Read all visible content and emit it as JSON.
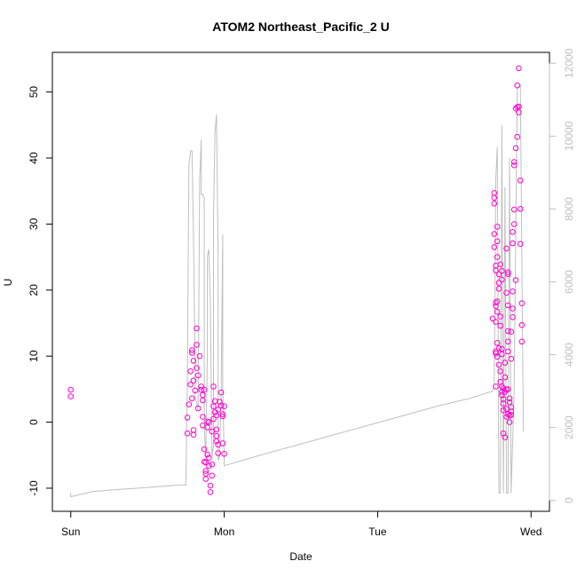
{
  "chart_data": {
    "type": "scatter",
    "title": "ATOM2 Northeast_Pacific_2 U",
    "xlabel": "Date",
    "ylabel": "U",
    "x_ticks": [
      "Sun",
      "Mon",
      "Tue",
      "Wed"
    ],
    "xlim_days": [
      -0.12,
      3.12
    ],
    "y_ticks": [
      -10,
      0,
      10,
      20,
      30,
      40,
      50
    ],
    "ylim": [
      -13.5,
      56
    ],
    "y2_ticks": [
      0,
      2000,
      4000,
      6000,
      8000,
      10000,
      12000
    ],
    "y2lim": [
      -300,
      12300
    ],
    "grid": false,
    "colors": {
      "points": "#ff00cc",
      "secondary_line": "#bfbfbf",
      "axis": "#000000",
      "right_axis": "#bfbfbf"
    },
    "series": [
      {
        "type": "scatter",
        "axis": "left",
        "points": [
          [
            0.0,
            4.9
          ],
          [
            0.0,
            3.9
          ],
          [
            0.76,
            -1.7
          ],
          [
            0.76,
            0.7
          ],
          [
            0.77,
            2.7
          ],
          [
            0.78,
            5.7
          ],
          [
            0.78,
            7.7
          ],
          [
            0.79,
            10.9
          ],
          [
            0.79,
            10.5
          ],
          [
            0.79,
            3.6
          ],
          [
            0.8,
            9.3
          ],
          [
            0.8,
            6.3
          ],
          [
            0.8,
            -1.2
          ],
          [
            0.8,
            -1.9
          ],
          [
            0.81,
            4.8
          ],
          [
            0.82,
            8.2
          ],
          [
            0.82,
            11.7
          ],
          [
            0.82,
            14.2
          ],
          [
            0.83,
            7.1
          ],
          [
            0.83,
            2.1
          ],
          [
            0.84,
            10.0
          ],
          [
            0.85,
            5.4
          ],
          [
            0.85,
            4.9
          ],
          [
            0.86,
            4.1
          ],
          [
            0.86,
            3.3
          ],
          [
            0.86,
            0.8
          ],
          [
            0.86,
            -0.5
          ],
          [
            0.87,
            4.9
          ],
          [
            0.87,
            -4.1
          ],
          [
            0.87,
            -6.0
          ],
          [
            0.88,
            -7.4
          ],
          [
            0.88,
            -7.8
          ],
          [
            0.88,
            -8.6
          ],
          [
            0.88,
            -6.1
          ],
          [
            0.89,
            -0.8
          ],
          [
            0.89,
            0.1
          ],
          [
            0.89,
            -4.9
          ],
          [
            0.9,
            -6.6
          ],
          [
            0.9,
            -5.4
          ],
          [
            0.9,
            0.0
          ],
          [
            0.91,
            -9.6
          ],
          [
            0.91,
            -10.6
          ],
          [
            0.92,
            -8.1
          ],
          [
            0.92,
            -6.4
          ],
          [
            0.92,
            -1.4
          ],
          [
            0.93,
            5.4
          ],
          [
            0.93,
            2.4
          ],
          [
            0.93,
            0.5
          ],
          [
            0.94,
            3.2
          ],
          [
            0.94,
            1.5
          ],
          [
            0.95,
            1.0
          ],
          [
            0.95,
            -1.1
          ],
          [
            0.95,
            -2.1
          ],
          [
            0.95,
            -2.9
          ],
          [
            0.96,
            -4.7
          ],
          [
            0.96,
            -3.4
          ],
          [
            0.96,
            1.9
          ],
          [
            0.97,
            3.1
          ],
          [
            0.98,
            4.5
          ],
          [
            0.98,
            2.5
          ],
          [
            0.99,
            1.2
          ],
          [
            0.99,
            0.9
          ],
          [
            0.99,
            -3.2
          ],
          [
            1.0,
            -4.8
          ],
          [
            1.0,
            2.4
          ],
          [
            2.75,
            15.7
          ],
          [
            2.76,
            34.7
          ],
          [
            2.76,
            34.0
          ],
          [
            2.76,
            33.1
          ],
          [
            2.76,
            28.5
          ],
          [
            2.76,
            26.5
          ],
          [
            2.77,
            23.7
          ],
          [
            2.77,
            23.0
          ],
          [
            2.77,
            18.1
          ],
          [
            2.77,
            17.6
          ],
          [
            2.77,
            15.2
          ],
          [
            2.77,
            10.7
          ],
          [
            2.77,
            10.4
          ],
          [
            2.77,
            5.4
          ],
          [
            2.78,
            29.6
          ],
          [
            2.78,
            27.4
          ],
          [
            2.78,
            25.0
          ],
          [
            2.78,
            18.3
          ],
          [
            2.78,
            16.7
          ],
          [
            2.78,
            12.0
          ],
          [
            2.78,
            9.9
          ],
          [
            2.79,
            22.4
          ],
          [
            2.79,
            21.1
          ],
          [
            2.79,
            20.2
          ],
          [
            2.79,
            11.2
          ],
          [
            2.79,
            8.7
          ],
          [
            2.8,
            23.9
          ],
          [
            2.8,
            16.0
          ],
          [
            2.8,
            14.6
          ],
          [
            2.8,
            7.7
          ],
          [
            2.8,
            6.1
          ],
          [
            2.81,
            22.9
          ],
          [
            2.81,
            21.6
          ],
          [
            2.81,
            11.1
          ],
          [
            2.81,
            10.3
          ],
          [
            2.81,
            5.4
          ],
          [
            2.81,
            4.6
          ],
          [
            2.81,
            4.1
          ],
          [
            2.82,
            3.5
          ],
          [
            2.82,
            2.8
          ],
          [
            2.82,
            1.8
          ],
          [
            2.82,
            5.1
          ],
          [
            2.82,
            -1.7
          ],
          [
            2.83,
            6.8
          ],
          [
            2.83,
            4.6
          ],
          [
            2.83,
            -2.3
          ],
          [
            2.83,
            9.0
          ],
          [
            2.84,
            0.8
          ],
          [
            2.84,
            2.0
          ],
          [
            2.84,
            4.9
          ],
          [
            2.84,
            26.3
          ],
          [
            2.84,
            19.6
          ],
          [
            2.85,
            22.7
          ],
          [
            2.85,
            22.4
          ],
          [
            2.85,
            17.7
          ],
          [
            2.85,
            13.8
          ],
          [
            2.85,
            12.2
          ],
          [
            2.85,
            10.7
          ],
          [
            2.85,
            5.0
          ],
          [
            2.85,
            1.2
          ],
          [
            2.86,
            3.6
          ],
          [
            2.86,
            3.0
          ],
          [
            2.86,
            1.0
          ],
          [
            2.86,
            0.0
          ],
          [
            2.87,
            9.6
          ],
          [
            2.87,
            13.7
          ],
          [
            2.87,
            2.3
          ],
          [
            2.87,
            1.6
          ],
          [
            2.87,
            1.1
          ],
          [
            2.88,
            17.2
          ],
          [
            2.88,
            15.9
          ],
          [
            2.88,
            19.8
          ],
          [
            2.88,
            28.8
          ],
          [
            2.88,
            27.1
          ],
          [
            2.89,
            32.2
          ],
          [
            2.89,
            30.0
          ],
          [
            2.89,
            39.4
          ],
          [
            2.89,
            38.9
          ],
          [
            2.9,
            47.5
          ],
          [
            2.9,
            41.5
          ],
          [
            2.9,
            21.5
          ],
          [
            2.91,
            43.2
          ],
          [
            2.91,
            51.0
          ],
          [
            2.91,
            47.7
          ],
          [
            2.92,
            46.9
          ],
          [
            2.92,
            47.8
          ],
          [
            2.92,
            53.6
          ],
          [
            2.93,
            36.6
          ],
          [
            2.93,
            32.3
          ],
          [
            2.93,
            27.0
          ],
          [
            2.94,
            18.0
          ],
          [
            2.94,
            14.7
          ],
          [
            2.94,
            12.2
          ]
        ]
      },
      {
        "type": "line",
        "axis": "right",
        "points": [
          [
            0.0,
            210
          ],
          [
            0.0,
            100
          ],
          [
            0.14,
            240
          ],
          [
            0.28,
            290
          ],
          [
            0.42,
            330
          ],
          [
            0.55,
            370
          ],
          [
            0.7,
            420
          ],
          [
            0.75,
            430
          ],
          [
            0.75,
            400
          ],
          [
            0.76,
            3400
          ],
          [
            0.77,
            9200
          ],
          [
            0.78,
            9600
          ],
          [
            0.79,
            9600
          ],
          [
            0.8,
            7200
          ],
          [
            0.81,
            3800
          ],
          [
            0.81,
            2800
          ],
          [
            0.82,
            2700
          ],
          [
            0.83,
            2500
          ],
          [
            0.84,
            8800
          ],
          [
            0.85,
            9900
          ],
          [
            0.85,
            8400
          ],
          [
            0.86,
            8400
          ],
          [
            0.87,
            8300
          ],
          [
            0.87,
            2000
          ],
          [
            0.88,
            1200
          ],
          [
            0.88,
            1150
          ],
          [
            0.89,
            4000
          ],
          [
            0.89,
            6700
          ],
          [
            0.9,
            6900
          ],
          [
            0.91,
            5400
          ],
          [
            0.92,
            1200
          ],
          [
            0.93,
            1500
          ],
          [
            0.93,
            7800
          ],
          [
            0.94,
            10100
          ],
          [
            0.95,
            10600
          ],
          [
            0.96,
            6800
          ],
          [
            0.96,
            1100
          ],
          [
            0.97,
            1200
          ],
          [
            0.98,
            2900
          ],
          [
            0.99,
            7300
          ],
          [
            0.99,
            3100
          ],
          [
            1.0,
            1100
          ],
          [
            1.0,
            950
          ],
          [
            1.2,
            1200
          ],
          [
            1.5,
            1550
          ],
          [
            1.8,
            1900
          ],
          [
            2.1,
            2250
          ],
          [
            2.4,
            2600
          ],
          [
            2.6,
            2800
          ],
          [
            2.75,
            3000
          ],
          [
            2.76,
            3200
          ],
          [
            2.77,
            8800
          ],
          [
            2.78,
            9700
          ],
          [
            2.79,
            200
          ],
          [
            2.8,
            200
          ],
          [
            2.81,
            10300
          ],
          [
            2.82,
            200
          ],
          [
            2.83,
            8600
          ],
          [
            2.84,
            200
          ],
          [
            2.85,
            200
          ],
          [
            2.86,
            9400
          ],
          [
            2.87,
            200
          ],
          [
            2.89,
            3000
          ],
          [
            2.91,
            11300
          ],
          [
            2.93,
            11400
          ],
          [
            2.95,
            1900
          ]
        ]
      }
    ]
  }
}
